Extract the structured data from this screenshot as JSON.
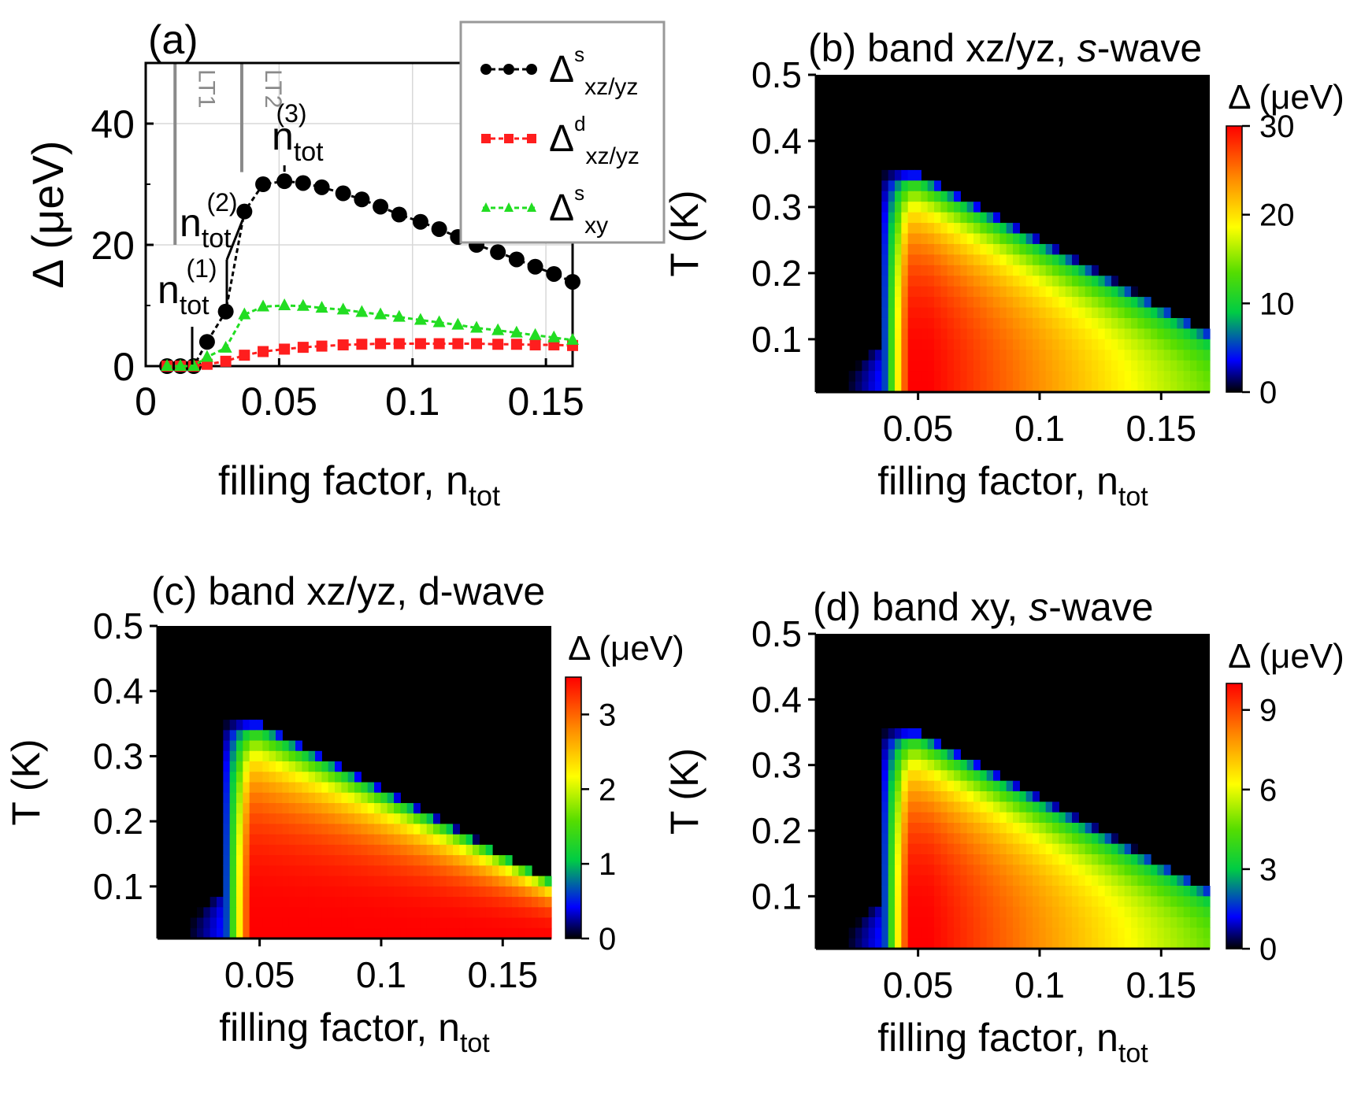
{
  "chart_data": [
    {
      "panel": "a",
      "type": "line",
      "panel_label": "(a)",
      "xlabel": "filling factor, n",
      "xlabel_sub": "tot",
      "ylabel": "Δ (μeV)",
      "xlim": [
        0,
        0.16
      ],
      "ylim": [
        0,
        50
      ],
      "xticks": [
        0,
        0.05,
        0.1,
        0.15
      ],
      "xtick_labels": [
        "0",
        "0.05",
        "0.1",
        "0.15"
      ],
      "yticks": [
        0,
        20,
        40
      ],
      "ytick_labels": [
        "0",
        "20",
        "40"
      ],
      "grid": true,
      "legend_position": "top-right",
      "vlines": [
        {
          "label": "LT1",
          "x": 0.011
        },
        {
          "label": "LT2",
          "x": 0.036
        }
      ],
      "annotations": [
        {
          "base": "n",
          "sub": "tot",
          "sup": "(1)",
          "x": 0.03,
          "y": 9
        },
        {
          "base": "n",
          "sub": "tot",
          "sup": "(2)",
          "x": 0.037,
          "y": 25.5
        },
        {
          "base": "n",
          "sub": "tot",
          "sup": "(3)",
          "x": 0.052,
          "y": 30.5
        }
      ],
      "series": [
        {
          "name": "Δs xz/yz",
          "sym": "Δ",
          "sup": "s",
          "sub": "xz/yz",
          "color": "#000000",
          "marker": "circle",
          "x": [
            0.008,
            0.013,
            0.018,
            0.023,
            0.03,
            0.037,
            0.044,
            0.052,
            0.059,
            0.066,
            0.074,
            0.081,
            0.088,
            0.095,
            0.103,
            0.11,
            0.117,
            0.124,
            0.132,
            0.139,
            0.146,
            0.153,
            0.16
          ],
          "y": [
            0,
            0,
            0,
            4,
            9,
            25.5,
            30,
            30.5,
            30.2,
            29.5,
            28.5,
            27.5,
            26.3,
            25,
            23.8,
            22.6,
            21.3,
            20,
            18.8,
            17.6,
            16.4,
            15.2,
            13.9
          ]
        },
        {
          "name": "Δd xz/yz",
          "sym": "Δ",
          "sup": "d",
          "sub": "xz/yz",
          "color": "#ff1e1e",
          "marker": "square",
          "x": [
            0.008,
            0.013,
            0.018,
            0.023,
            0.03,
            0.037,
            0.044,
            0.052,
            0.059,
            0.066,
            0.074,
            0.081,
            0.088,
            0.095,
            0.103,
            0.11,
            0.117,
            0.124,
            0.132,
            0.139,
            0.146,
            0.153,
            0.16
          ],
          "y": [
            0,
            0,
            0,
            0.3,
            0.8,
            1.8,
            2.4,
            2.8,
            3.1,
            3.3,
            3.5,
            3.6,
            3.7,
            3.7,
            3.7,
            3.7,
            3.7,
            3.7,
            3.6,
            3.6,
            3.5,
            3.5,
            3.4
          ]
        },
        {
          "name": "Δs xy",
          "sym": "Δ",
          "sup": "s",
          "sub": "xy",
          "color": "#22dd22",
          "marker": "triangle",
          "x": [
            0.008,
            0.013,
            0.018,
            0.023,
            0.03,
            0.037,
            0.044,
            0.052,
            0.059,
            0.066,
            0.074,
            0.081,
            0.088,
            0.095,
            0.103,
            0.11,
            0.117,
            0.124,
            0.132,
            0.139,
            0.146,
            0.153,
            0.16
          ],
          "y": [
            0,
            0,
            0,
            1.5,
            3,
            8.5,
            9.8,
            10,
            9.9,
            9.6,
            9.3,
            8.9,
            8.5,
            8.1,
            7.6,
            7.2,
            6.8,
            6.3,
            5.9,
            5.5,
            5.1,
            4.7,
            4.3
          ]
        }
      ]
    },
    {
      "panel": "b",
      "type": "heatmap",
      "title": "(b) band xz/yz, ",
      "title_wave": "s",
      "title_suffix": "-wave",
      "xlabel": "filling factor, n",
      "xlabel_sub": "tot",
      "ylabel": "T (K)",
      "xlim": [
        0.008,
        0.17
      ],
      "ylim": [
        0.02,
        0.5
      ],
      "xtick_labels": [
        "0.05",
        "0.1",
        "0.15"
      ],
      "ytick_labels": [
        "0.5",
        "0.4",
        "0.3",
        "0.2",
        "0.1"
      ],
      "colorbar_label": "Δ (μeV)",
      "colorbar_max": 30,
      "colorbar_ticks": [
        "30",
        "20",
        "10",
        "0"
      ],
      "profile": "s"
    },
    {
      "panel": "c",
      "type": "heatmap",
      "title": "(c) band xz/yz, d-wave",
      "title_wave": "",
      "title_suffix": "",
      "xlabel": "filling factor, n",
      "xlabel_sub": "tot",
      "ylabel": "T (K)",
      "xlim": [
        0.008,
        0.17
      ],
      "ylim": [
        0.02,
        0.5
      ],
      "xtick_labels": [
        "0.05",
        "0.1",
        "0.15"
      ],
      "ytick_labels": [
        "0.5",
        "0.4",
        "0.3",
        "0.2",
        "0.1"
      ],
      "colorbar_label": "Δ (μeV)",
      "colorbar_max": 3.5,
      "colorbar_ticks": [
        "3",
        "2",
        "1",
        "0"
      ],
      "profile": "d"
    },
    {
      "panel": "d",
      "type": "heatmap",
      "title": "(d) band xy, ",
      "title_wave": "s",
      "title_suffix": "-wave",
      "xlabel": "filling factor, n",
      "xlabel_sub": "tot",
      "ylabel": "T (K)",
      "xlim": [
        0.008,
        0.17
      ],
      "ylim": [
        0.02,
        0.5
      ],
      "xtick_labels": [
        "0.05",
        "0.1",
        "0.15"
      ],
      "ytick_labels": [
        "0.5",
        "0.4",
        "0.3",
        "0.2",
        "0.1"
      ],
      "colorbar_label": "Δ (μeV)",
      "colorbar_max": 10,
      "colorbar_ticks": [
        "9",
        "6",
        "3",
        "0"
      ],
      "profile": "s"
    }
  ]
}
